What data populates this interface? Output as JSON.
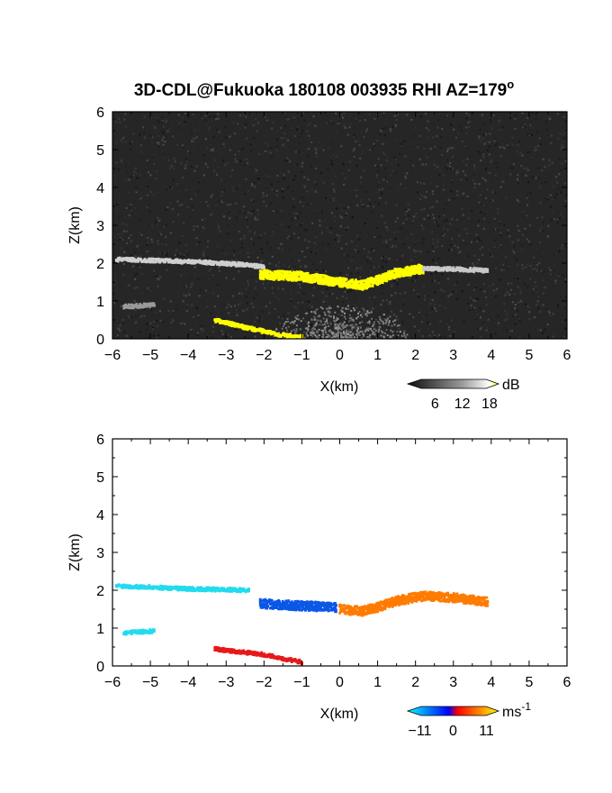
{
  "title": "3D-CDL@Fukuoka 180108 003935 RHI AZ=179",
  "title_sup": "o",
  "chart_data": [
    {
      "type": "heatmap",
      "panel": "snr",
      "xlabel": "X(km)",
      "ylabel": "Z(km)",
      "xlim": [
        -6,
        6
      ],
      "ylim": [
        0,
        6
      ],
      "xticks": [
        "-6",
        "-5",
        "-4",
        "-3",
        "-2",
        "-1",
        "0",
        "1",
        "2",
        "3",
        "4",
        "5",
        "6"
      ],
      "yticks": [
        "0",
        "1",
        "2",
        "3",
        "4",
        "5",
        "6"
      ],
      "background": "noise, dark gray",
      "colorbar": {
        "unit": "dB",
        "ticks": [
          "6",
          "12",
          "18"
        ],
        "range": [
          0,
          20
        ],
        "colors": [
          "#1a1a1a",
          "#ffffff",
          "#ffff00"
        ]
      },
      "features": [
        {
          "name": "thin layer",
          "points": [
            [
              -5.9,
              2.1
            ],
            [
              -4.5,
              2.06
            ],
            [
              -3.5,
              2.02
            ],
            [
              -2.5,
              1.96
            ],
            [
              -2.0,
              1.9
            ]
          ],
          "level": "medium",
          "color": "#cfcfcf"
        },
        {
          "name": "cloud base",
          "points": [
            [
              -2.1,
              1.7
            ],
            [
              -1.0,
              1.65
            ],
            [
              0.0,
              1.5
            ],
            [
              0.6,
              1.42
            ],
            [
              1.0,
              1.55
            ],
            [
              1.5,
              1.75
            ],
            [
              2.2,
              1.85
            ]
          ],
          "level": "high",
          "color": "#ffff00"
        },
        {
          "name": "upper right layer",
          "points": [
            [
              2.2,
              1.85
            ],
            [
              3.0,
              1.85
            ],
            [
              3.9,
              1.8
            ]
          ],
          "level": "medium",
          "color": "#c8c8c8"
        },
        {
          "name": "low layer",
          "points": [
            [
              -3.3,
              0.5
            ],
            [
              -2.5,
              0.3
            ],
            [
              -1.5,
              0.1
            ],
            [
              -1.0,
              0.05
            ]
          ],
          "level": "high",
          "color": "#ffff00"
        },
        {
          "name": "low patch",
          "points": [
            [
              -5.7,
              0.85
            ],
            [
              -4.9,
              0.9
            ]
          ],
          "level": "low",
          "color": "#9a9a9a"
        }
      ]
    },
    {
      "type": "heatmap",
      "panel": "doppler velocity",
      "xlabel": "X(km)",
      "ylabel": "Z(km)",
      "xlim": [
        -6,
        6
      ],
      "ylim": [
        0,
        6
      ],
      "xticks": [
        "-6",
        "-5",
        "-4",
        "-3",
        "-2",
        "-1",
        "0",
        "1",
        "2",
        "3",
        "4",
        "5",
        "6"
      ],
      "yticks": [
        "0",
        "1",
        "2",
        "3",
        "4",
        "5",
        "6"
      ],
      "colorbar": {
        "unit": "ms",
        "unit_sup": "-1",
        "ticks": [
          "-11",
          "0",
          "11"
        ],
        "range": [
          -15,
          15
        ],
        "colors": [
          "#00ffff",
          "#0000ff",
          "#ff0000",
          "#ffff00"
        ]
      },
      "features": [
        {
          "name": "thin layer",
          "points": [
            [
              -5.9,
              2.12
            ],
            [
              -4.0,
              2.04
            ],
            [
              -2.4,
              2.0
            ]
          ],
          "velocity": -13,
          "color": "#22dbee"
        },
        {
          "name": "cloud base left",
          "points": [
            [
              -2.1,
              1.65
            ],
            [
              -1.2,
              1.6
            ],
            [
              -0.1,
              1.55
            ]
          ],
          "velocity": -8,
          "color": "#0b57e6"
        },
        {
          "name": "cloud base right",
          "points": [
            [
              0.0,
              1.5
            ],
            [
              0.6,
              1.45
            ],
            [
              1.0,
              1.55
            ],
            [
              1.5,
              1.72
            ],
            [
              2.2,
              1.85
            ],
            [
              3.1,
              1.8
            ],
            [
              3.9,
              1.7
            ]
          ],
          "velocity": 7,
          "color": "#ff7b00"
        },
        {
          "name": "low layer",
          "points": [
            [
              -3.3,
              0.45
            ],
            [
              -2.0,
              0.3
            ],
            [
              -1.0,
              0.1
            ]
          ],
          "velocity": -2,
          "color": "#e81818"
        },
        {
          "name": "low patch",
          "points": [
            [
              -5.7,
              0.88
            ],
            [
              -4.9,
              0.92
            ]
          ],
          "velocity": -13,
          "color": "#22dbee"
        }
      ]
    }
  ]
}
